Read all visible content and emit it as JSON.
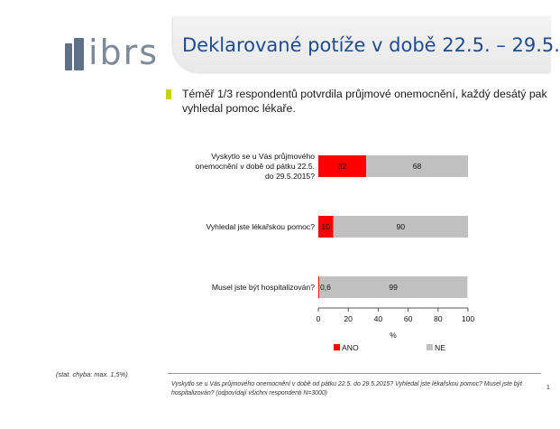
{
  "header": {
    "logo_text": "ibrs",
    "title": "Deklarované potíže v době 22.5. – 29.5."
  },
  "subtitle": "Téměř 1/3 respondentů potvrdila průjmové onemocnění, každý desátý pak vyhledal pomoc lékaře.",
  "colors": {
    "ano": "#ff0000",
    "ne": "#c0c0c0",
    "bullet": "#c8d400",
    "title": "#1f4b8f"
  },
  "chart_data": {
    "type": "bar",
    "orientation": "horizontal",
    "stacked": true,
    "categories": [
      "Vyskytlo se u Vás průjmového onemocnění v době od pátku 22.5. do 29.5.2015?",
      "Vyhledal jste lékařskou pomoc?",
      "Musel jste být hospitalizován?"
    ],
    "category_lines": [
      [
        "Vyskytlo se u Vás průjmového",
        "onemocnění v době od pátku 22.5.",
        "do 29.5.2015?"
      ],
      [
        "Vyhledal jste lékařskou pomoc?"
      ],
      [
        "Musel jste být hospitalizován?"
      ]
    ],
    "series": [
      {
        "name": "ANO",
        "values": [
          32,
          10,
          0.6
        ],
        "labels": [
          "32",
          "10",
          "0,6"
        ]
      },
      {
        "name": "NE",
        "values": [
          68,
          90,
          99
        ],
        "labels": [
          "68",
          "90",
          "99"
        ]
      }
    ],
    "xlim": [
      0,
      100
    ],
    "xticks": [
      "0",
      "20",
      "40",
      "60",
      "80",
      "100"
    ],
    "xlabel": "%",
    "grid": false,
    "legend": "bottom"
  },
  "footer": {
    "note": "(stat. chyba: max. 1,5%)",
    "source": "Vyskytlo se u Vás průjmového onemocnění v době od pátku 22.5. do 29.5.2015? Vyhledal jste lékařskou pomoc? Musel jste být hospitalizován?  (odpovídají všichni respondenti N=3000)",
    "page": "1"
  }
}
